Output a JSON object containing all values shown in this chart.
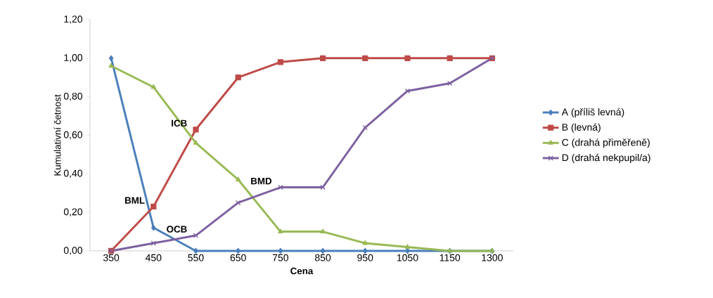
{
  "chart_data": {
    "type": "line",
    "xlabel": "Cena",
    "ylabel": "Kumulativní četnost",
    "categories": [
      "350",
      "450",
      "550",
      "650",
      "750",
      "850",
      "950",
      "1050",
      "1150",
      "1300"
    ],
    "series": [
      {
        "name": "A (příliš levná)",
        "color": "#4a7ebb",
        "marker": "diamond",
        "values": [
          1.0,
          0.12,
          0,
          0,
          0,
          0,
          0,
          0,
          0,
          0
        ]
      },
      {
        "name": "B (levná)",
        "color": "#be4b48",
        "marker": "square",
        "values": [
          0,
          0.23,
          0.63,
          0.9,
          0.98,
          1.0,
          1.0,
          1.0,
          1.0,
          1.0
        ]
      },
      {
        "name": "C (drahá přiměřeně)",
        "color": "#98b954",
        "marker": "triangle",
        "values": [
          0.96,
          0.85,
          0.56,
          0.37,
          0.1,
          0.1,
          0.04,
          0.02,
          0,
          0
        ]
      },
      {
        "name": "D (drahá nekpupil/a)",
        "color": "#7d60a0",
        "marker": "cross",
        "values": [
          0,
          0.04,
          0.08,
          0.25,
          0.33,
          0.33,
          0.64,
          0.83,
          0.87,
          1.0
        ]
      }
    ],
    "ylim": [
      0,
      1.2
    ],
    "yticks": [
      {
        "value": 0,
        "label": "0,00"
      },
      {
        "value": 0.2,
        "label": "0,20"
      },
      {
        "value": 0.4,
        "label": "0,40"
      },
      {
        "value": 0.6,
        "label": "0,60"
      },
      {
        "value": 0.8,
        "label": "0,80"
      },
      {
        "value": 1.0,
        "label": "1,00"
      },
      {
        "value": 1.2,
        "label": "1,20"
      }
    ],
    "annotations": [
      {
        "text": "BML",
        "x": "450",
        "y": 0.23
      },
      {
        "text": "ICB",
        "x": "550",
        "y": 0.63
      },
      {
        "text": "OCB",
        "x": "550",
        "y": 0.08
      },
      {
        "text": "BMD",
        "x": "750",
        "y": 0.33
      }
    ],
    "legend": "right",
    "grid": false,
    "line_style": "solid"
  }
}
